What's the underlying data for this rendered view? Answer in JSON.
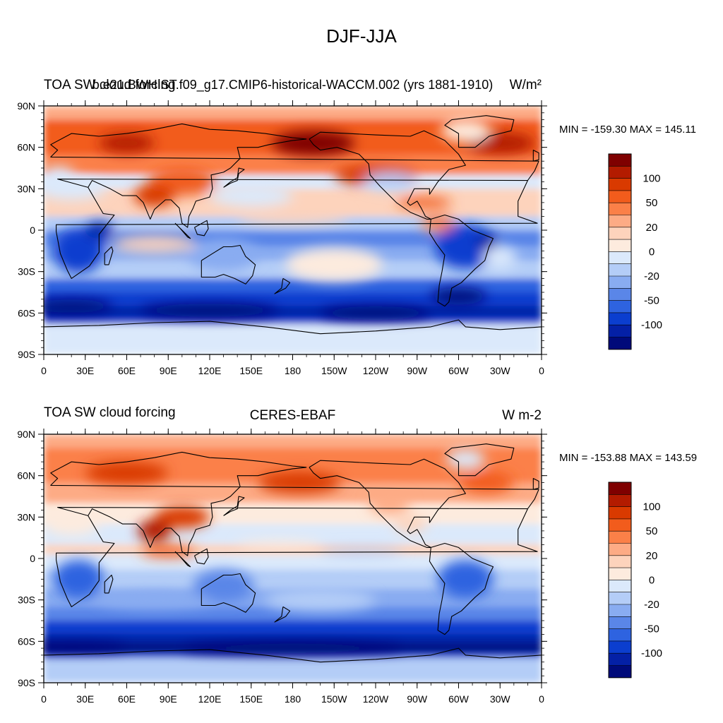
{
  "title": "DJF-JJA",
  "panels": [
    {
      "left_title": "TOA SW cloud forcing",
      "center_title": "b.e21.BWHIST.f09_g17.CMIP6-historical-WACCM.002 (yrs 1881-1910)",
      "right_title": "W/m²",
      "minmax": "MIN = -159.30 MAX = 145.11"
    },
    {
      "left_title": "TOA SW cloud forcing",
      "center_title": "CERES-EBAF",
      "right_title": "W m-2",
      "minmax": "MIN = -153.88 MAX = 143.59"
    }
  ],
  "lat_labels": [
    "90N",
    "60N",
    "30N",
    "0",
    "30S",
    "60S",
    "90S"
  ],
  "lon_labels": [
    "0",
    "30E",
    "60E",
    "90E",
    "120E",
    "150E",
    "180",
    "150W",
    "120W",
    "90W",
    "60W",
    "30W",
    "0"
  ],
  "colorbar": {
    "labels": [
      "100",
      "50",
      "20",
      "0",
      "-20",
      "-50",
      "-100"
    ],
    "colors": [
      "#7f0000",
      "#b31b00",
      "#d93a00",
      "#f25c1c",
      "#fb8048",
      "#fdab85",
      "#fdd3bc",
      "#fdebde",
      "#dbe9fb",
      "#b4cdf7",
      "#89acf1",
      "#5a86e8",
      "#2e63e0",
      "#0b3ecf",
      "#0420a6",
      "#000a7a"
    ]
  },
  "chart_data": {
    "type": "heatmap",
    "title": "DJF-JJA",
    "variable": "TOA SW cloud forcing",
    "levels": [
      -100,
      -50,
      -20,
      0,
      20,
      50,
      100
    ],
    "datasets": [
      {
        "name": "b.e21.BWHIST.f09_g17.CMIP6-historical-WACCM.002 (yrs 1881-1910)",
        "units": "W/m²",
        "min": -159.3,
        "max": 145.11
      },
      {
        "name": "CERES-EBAF",
        "units": "W m-2",
        "min": -153.88,
        "max": 143.59
      }
    ]
  }
}
